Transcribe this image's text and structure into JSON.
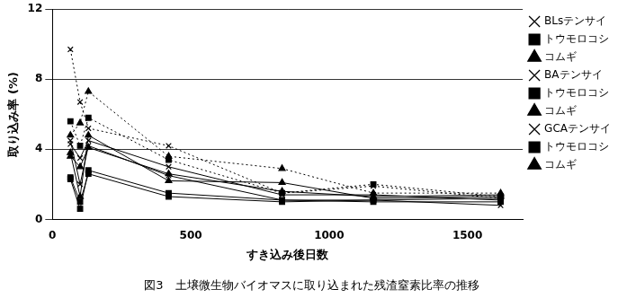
{
  "chart_data": {
    "type": "line",
    "title": "図3　土壌微生物バイオマスに取り込まれた残渣窒素比率の推移",
    "x_label": "すき込み後日数",
    "y_label": "取り込み率 (%)",
    "x": [
      65,
      100,
      130,
      420,
      830,
      1160,
      1620
    ],
    "xlim": [
      0,
      1700
    ],
    "xticks": [
      0,
      500,
      1000,
      1500
    ],
    "ylim": [
      0,
      12
    ],
    "yticks": [
      0,
      4,
      8,
      12
    ],
    "grid": true,
    "legend": "right",
    "series": [
      {
        "name": "BLsテンサイ",
        "color": "#000000",
        "marker": "x",
        "line_style": "solid",
        "values": [
          4.5,
          2.0,
          4.2,
          2.5,
          1.1,
          1.1,
          0.8
        ]
      },
      {
        "name": "トウモロコシ",
        "color": "#000000",
        "marker": "square",
        "line_style": "solid",
        "values": [
          2.3,
          0.6,
          2.8,
          1.5,
          1.1,
          1.0,
          1.0
        ]
      },
      {
        "name": "コムギ",
        "color": "#000000",
        "marker": "triangle",
        "line_style": "solid",
        "values": [
          3.8,
          1.3,
          4.8,
          2.2,
          2.1,
          1.2,
          1.3
        ]
      },
      {
        "name": "BAテンサイ",
        "color": "#000000",
        "marker": "x",
        "line_style": "dotted",
        "values": [
          9.7,
          6.7,
          5.2,
          4.2,
          1.5,
          1.9,
          1.2
        ]
      },
      {
        "name": "トウモロコシ",
        "color": "#000000",
        "marker": "square",
        "line_style": "dotted",
        "values": [
          5.6,
          4.2,
          5.8,
          3.4,
          1.5,
          2.0,
          1.3
        ]
      },
      {
        "name": "コムギ",
        "color": "#000000",
        "marker": "triangle",
        "line_style": "dotted",
        "values": [
          4.8,
          5.5,
          7.3,
          3.6,
          2.9,
          1.5,
          1.5
        ]
      },
      {
        "name": "GCAテンサイ",
        "color": "#000000",
        "marker": "x",
        "line_style": "solid",
        "values": [
          4.3,
          3.5,
          4.5,
          3.0,
          1.4,
          1.4,
          1.1
        ]
      },
      {
        "name": "トウモロコシ",
        "color": "#000000",
        "marker": "square",
        "line_style": "solid",
        "values": [
          2.4,
          1.0,
          2.6,
          1.3,
          1.0,
          1.1,
          1.2
        ]
      },
      {
        "name": "コムギ",
        "color": "#000000",
        "marker": "triangle",
        "line_style": "solid",
        "values": [
          3.6,
          3.0,
          4.1,
          2.6,
          1.6,
          1.3,
          1.4
        ]
      }
    ]
  }
}
